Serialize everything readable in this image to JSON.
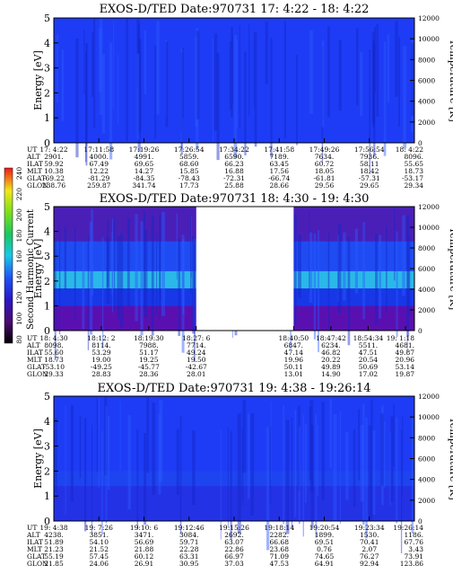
{
  "colorbar": {
    "label": "Second Harmonic Current",
    "ticks": [
      "240",
      "220",
      "200",
      "180",
      "160",
      "140",
      "120",
      "100",
      "80"
    ]
  },
  "chart_data": [
    {
      "type": "heatmap",
      "title": "EXOS-D/TED",
      "date": "Date:970731",
      "time_range": "17: 4:22 - 18: 4:22",
      "ylabel": "Energy [eV]",
      "ylabel_right": "Temperature [K]",
      "ylim": [
        0,
        5
      ],
      "yticks": [
        "0",
        "1",
        "2",
        "3",
        "4",
        "5"
      ],
      "ylim_right": [
        0,
        12000
      ],
      "yticks_right": [
        "0",
        "2000",
        "4000",
        "6000",
        "8000",
        "10000",
        "12000"
      ],
      "gap": null,
      "bands": [
        {
          "e0": 0.0,
          "e1": 5.0,
          "color": "#1e3cf5"
        }
      ],
      "orbit_labels": [
        "UT",
        "ALT",
        "ILAT",
        "MLT",
        "GLAT",
        "GLON"
      ],
      "orbit_columns": [
        [
          "17: 4:22",
          "2901.",
          "59.92",
          "10.38",
          "-69.22",
          "238.76"
        ],
        [
          "17:11:58",
          "4000.",
          "67.49",
          "12.22",
          "-81.29",
          "259.87"
        ],
        [
          "17:19:26",
          "4991.",
          "69.65",
          "14.27",
          "-84.35",
          "341.74"
        ],
        [
          "17:26:54",
          "5859.",
          "68.60",
          "15.85",
          "-78.43",
          "17.73"
        ],
        [
          "17:34:22",
          "6590.",
          "66.23",
          "16.88",
          "-72.31",
          "25.88"
        ],
        [
          "17:41:58",
          "7189.",
          "63.45",
          "17.56",
          "-66.74",
          "28.66"
        ],
        [
          "17:49:26",
          "7634.",
          "60.72",
          "18.05",
          "-61.81",
          "29.56"
        ],
        [
          "17:56:54",
          "7936.",
          "58.11",
          "18.42",
          "-57.31",
          "29.65"
        ],
        [
          "18: 4:22",
          "8096.",
          "55.65",
          "18.73",
          "-53.17",
          "29.34"
        ]
      ]
    },
    {
      "type": "heatmap",
      "title": "EXOS-D/TED",
      "date": "Date:970731",
      "time_range": "18: 4:30 - 19: 4:30",
      "ylabel": "Energy [eV]",
      "ylabel_right": "Temperature [K]",
      "ylim": [
        0,
        5
      ],
      "yticks": [
        "0",
        "1",
        "2",
        "3",
        "4",
        "5"
      ],
      "ylim_right": [
        0,
        12000
      ],
      "yticks_right": [
        "0",
        "2000",
        "4000",
        "6000",
        "8000",
        "10000",
        "12000"
      ],
      "gap": [
        0.395,
        0.665
      ],
      "bands": [
        {
          "e0": 0.0,
          "e1": 1.0,
          "color": "#5a10b0"
        },
        {
          "e0": 1.0,
          "e1": 1.7,
          "color": "#1838e8"
        },
        {
          "e0": 1.7,
          "e1": 2.4,
          "color": "#2ab8e8"
        },
        {
          "e0": 2.4,
          "e1": 3.6,
          "color": "#1e4cf2"
        },
        {
          "e0": 3.6,
          "e1": 5.0,
          "color": "#4a1fb8"
        }
      ],
      "orbit_labels": [
        "UT",
        "ALT",
        "ILAT",
        "MLT",
        "GLAT",
        "GLON"
      ],
      "orbit_columns": [
        [
          "18: 4:30",
          "8098.",
          "55.60",
          "18.73",
          "-53.10",
          "29.33"
        ],
        [
          "18:12: 2",
          "8114.",
          "53.29",
          "19.00",
          "-49.25",
          "28.83"
        ],
        [
          "18:19:30",
          "7988.",
          "51.17",
          "19.25",
          "-45.77",
          "28.36"
        ],
        [
          "18:27: 6",
          "7714.",
          "49.24",
          "19.50",
          "-42.67",
          "28.01"
        ],
        [
          "18:40:50",
          "6847.",
          "47.14",
          "19.96",
          "50.11",
          "13.01"
        ],
        [
          "18:47:42",
          "6234.",
          "46.82",
          "20.22",
          "49.89",
          "14.90"
        ],
        [
          "18:54:34",
          "5511.",
          "47.51",
          "20.54",
          "50.69",
          "17.02"
        ],
        [
          "19: 1:18",
          "4681.",
          "49.87",
          "20.96",
          "53.14",
          "19.87"
        ]
      ]
    },
    {
      "type": "heatmap",
      "title": "EXOS-D/TED",
      "date": "Date:970731",
      "time_range": "19: 4:38 - 19:26:14",
      "ylabel": "Energy [eV]",
      "ylabel_right": "Temperature [K]",
      "ylim": [
        0,
        5
      ],
      "yticks": [
        "0",
        "1",
        "2",
        "3",
        "4",
        "5"
      ],
      "ylim_right": [
        0,
        12000
      ],
      "yticks_right": [
        "0",
        "2000",
        "4000",
        "6000",
        "8000",
        "10000",
        "12000"
      ],
      "gap": null,
      "bands": [
        {
          "e0": 0.0,
          "e1": 1.4,
          "color": "#2432e6"
        },
        {
          "e0": 1.4,
          "e1": 2.0,
          "color": "#1e44f0"
        },
        {
          "e0": 2.0,
          "e1": 5.0,
          "color": "#1e3cf5"
        }
      ],
      "orbit_labels": [
        "UT",
        "ALT",
        "ILAT",
        "MLT",
        "GLAT",
        "GLON"
      ],
      "orbit_columns": [
        [
          "19: 4:38",
          "4238.",
          "51.89",
          "21.23",
          "55.19",
          "21.85"
        ],
        [
          "19: 7:26",
          "3851.",
          "54.10",
          "21.52",
          "57.45",
          "24.06"
        ],
        [
          "19:10: 6",
          "3471.",
          "56.69",
          "21.88",
          "60.12",
          "26.91"
        ],
        [
          "19:12:46",
          "3084.",
          "59.71",
          "22.28",
          "63.31",
          "30.95"
        ],
        [
          "19:15:26",
          "2692.",
          "63.07",
          "22.86",
          "66.97",
          "37.03"
        ],
        [
          "19:18:14",
          "2282.",
          "66.68",
          "23.68",
          "71.09",
          "47.53"
        ],
        [
          "19:20:54",
          "1899.",
          "69.51",
          "0.76",
          "74.65",
          "64.91"
        ],
        [
          "19:23:34",
          "1530.",
          "70.41",
          "2.07",
          "76.27",
          "92.94"
        ],
        [
          "19:26:14",
          "1186.",
          "67.76",
          "3.43",
          "73.91",
          "123.86"
        ]
      ]
    }
  ]
}
